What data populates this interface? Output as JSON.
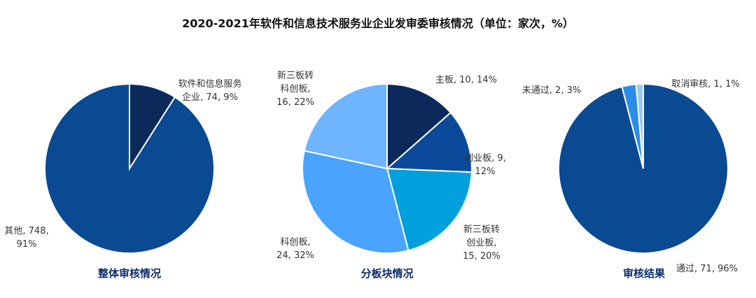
{
  "title": "2020-2021年软件和信息技术服务业企业发审委审核情况（单位：家次，%）",
  "chart_data": [
    {
      "type": "pie",
      "subtitle": "整体审核情况",
      "slices": [
        {
          "name": "软件和信息服务企业",
          "value": 74,
          "percent": "9%",
          "label": [
            "软件和信息服务",
            "企业, 74, 9%"
          ],
          "color": "#0b2a5b"
        },
        {
          "name": "其他",
          "value": 748,
          "percent": "91%",
          "label": [
            "其他, 748,",
            "91%"
          ],
          "color": "#0a4a92"
        }
      ]
    },
    {
      "type": "pie",
      "subtitle": "分板块情况",
      "slices": [
        {
          "name": "主板",
          "value": 10,
          "percent": "14%",
          "label": [
            "主板, 10, 14%"
          ],
          "color": "#0b2a5b"
        },
        {
          "name": "创业板",
          "value": 9,
          "percent": "12%",
          "label": [
            "创业板, 9,",
            "12%"
          ],
          "color": "#0b4a9a"
        },
        {
          "name": "新三板转创业板",
          "value": 15,
          "percent": "20%",
          "label": [
            "新三板转",
            "创业板,",
            "15, 20%"
          ],
          "color": "#00a0dc"
        },
        {
          "name": "科创板",
          "value": 24,
          "percent": "32%",
          "label": [
            "科创板,",
            "24, 32%"
          ],
          "color": "#4aa3ff"
        },
        {
          "name": "新三板转科创板",
          "value": 16,
          "percent": "22%",
          "label": [
            "新三板转",
            "科创板,",
            "16, 22%"
          ],
          "color": "#6fb4ff"
        }
      ]
    },
    {
      "type": "pie",
      "subtitle": "审核结果",
      "slices": [
        {
          "name": "通过",
          "value": 71,
          "percent": "96%",
          "label": [
            "通过, 71, 96%"
          ],
          "color": "#0a4a92"
        },
        {
          "name": "未通过",
          "value": 2,
          "percent": "3%",
          "label": [
            "未通过, 2, 3%"
          ],
          "color": "#2a8de8"
        },
        {
          "name": "取消审核",
          "value": 1,
          "percent": "1%",
          "label": [
            "取消审核, 1, 1%"
          ],
          "color": "#9cc7ee"
        }
      ]
    }
  ]
}
